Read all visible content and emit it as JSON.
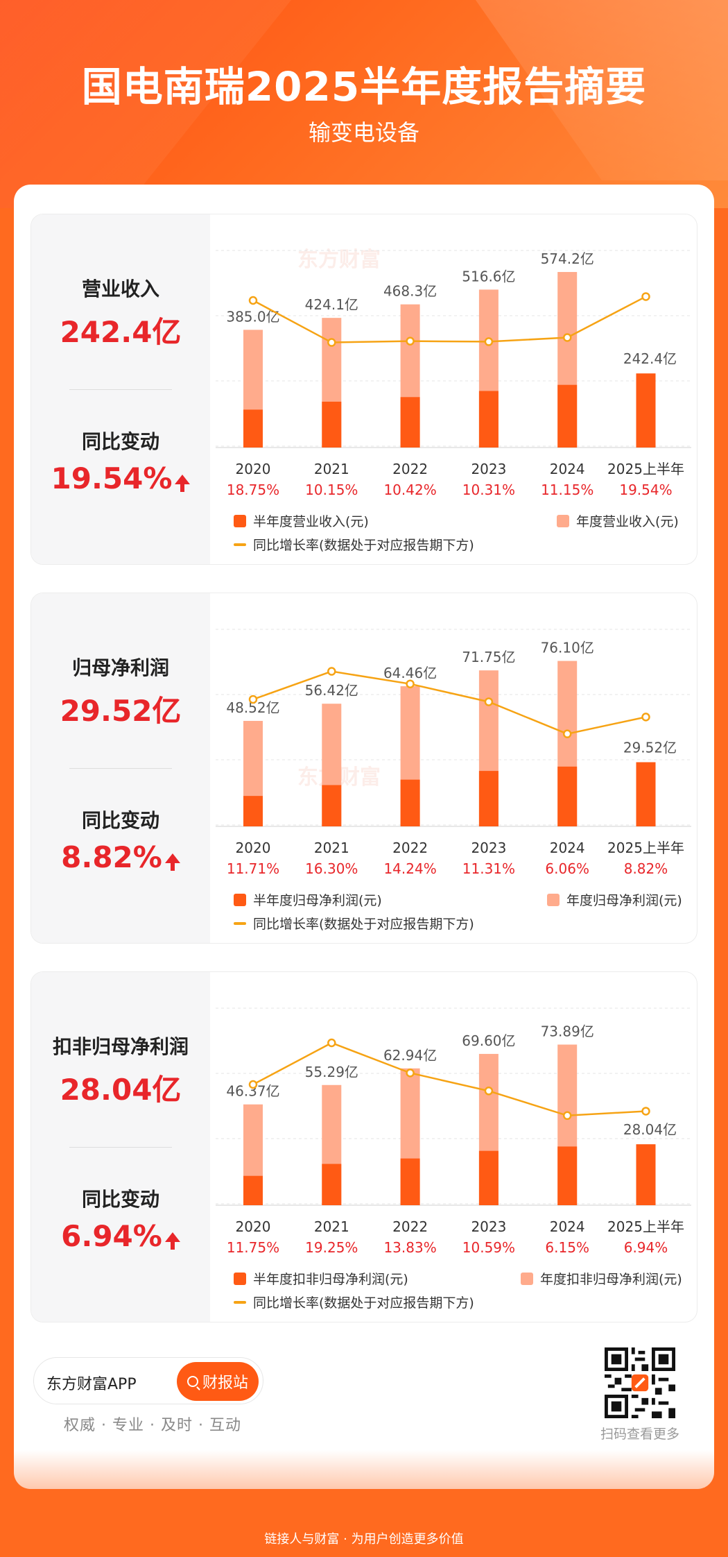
{
  "header": {
    "title": "国电南瑞2025半年度报告摘要",
    "subtitle": "输变电设备"
  },
  "watermark": "东方财富",
  "colors": {
    "half_bar": "#ff5a14",
    "annual_bar": "#ffab8c",
    "growth_line": "#f6a314",
    "negative_text": "#e8262a"
  },
  "sections": [
    {
      "metric_label": "营业收入",
      "metric_value": "242.4亿",
      "change_label": "同比变动",
      "change_value": "19.54%",
      "legend": {
        "half": "半年度营业收入(元)",
        "annual": "年度营业收入(元)",
        "line": "同比增长率(数据处于对应报告期下方)"
      }
    },
    {
      "metric_label": "归母净利润",
      "metric_value": "29.52亿",
      "change_label": "同比变动",
      "change_value": "8.82%",
      "legend": {
        "half": "半年度归母净利润(元)",
        "annual": "年度归母净利润(元)",
        "line": "同比增长率(数据处于对应报告期下方)"
      }
    },
    {
      "metric_label": "扣非归母净利润",
      "metric_value": "28.04亿",
      "change_label": "同比变动",
      "change_value": "6.94%",
      "legend": {
        "half": "半年度扣非归母净利润(元)",
        "annual": "年度扣非归母净利润(元)",
        "line": "同比增长率(数据处于对应报告期下方)"
      }
    }
  ],
  "chart_data": [
    {
      "type": "bar",
      "categories": [
        "2020",
        "2021",
        "2022",
        "2023",
        "2024",
        "2025上半年"
      ],
      "series": [
        {
          "name": "半年度营业收入(元)",
          "values": [
            124,
            150,
            165,
            185,
            205,
            242.4
          ]
        },
        {
          "name": "年度营业收入(元)",
          "values": [
            385.0,
            424.1,
            468.3,
            516.6,
            574.2,
            null
          ]
        },
        {
          "name": "同比增长率(数据处于对应报告期下方)",
          "values": [
            18.75,
            10.15,
            10.42,
            10.31,
            11.15,
            19.54
          ]
        }
      ],
      "bar_labels": [
        "385.0亿",
        "424.1亿",
        "468.3亿",
        "516.6亿",
        "574.2亿",
        "242.4亿"
      ],
      "growth_labels": [
        "18.75%",
        "10.15%",
        "10.42%",
        "10.31%",
        "11.15%",
        "19.54%"
      ],
      "ylim": [
        0,
        640
      ],
      "growth_range": [
        0,
        25
      ]
    },
    {
      "type": "bar",
      "categories": [
        "2020",
        "2021",
        "2022",
        "2023",
        "2024",
        "2025上半年"
      ],
      "series": [
        {
          "name": "半年度归母净利润(元)",
          "values": [
            14,
            19,
            21.5,
            25.5,
            27.5,
            29.52
          ]
        },
        {
          "name": "年度归母净利润(元)",
          "values": [
            48.52,
            56.42,
            64.46,
            71.75,
            76.1,
            null
          ]
        },
        {
          "name": "同比增长率(数据处于对应报告期下方)",
          "values": [
            11.71,
            16.3,
            14.24,
            11.31,
            6.06,
            8.82
          ]
        }
      ],
      "bar_labels": [
        "48.52亿",
        "56.42亿",
        "64.46亿",
        "71.75亿",
        "76.10亿",
        "29.52亿"
      ],
      "growth_labels": [
        "11.71%",
        "16.30%",
        "14.24%",
        "11.31%",
        "6.06%",
        "8.82%"
      ],
      "ylim": [
        0,
        90
      ],
      "growth_range": [
        0,
        20
      ]
    },
    {
      "type": "bar",
      "categories": [
        "2020",
        "2021",
        "2022",
        "2023",
        "2024",
        "2025上半年"
      ],
      "series": [
        {
          "name": "半年度扣非归母净利润(元)",
          "values": [
            13.5,
            19,
            21.5,
            25,
            27,
            28.04
          ]
        },
        {
          "name": "年度扣非归母净利润(元)",
          "values": [
            46.37,
            55.29,
            62.94,
            69.6,
            73.89,
            null
          ]
        },
        {
          "name": "同比增长率(数据处于对应报告期下方)",
          "values": [
            11.75,
            19.25,
            13.83,
            10.59,
            6.15,
            6.94
          ]
        }
      ],
      "bar_labels": [
        "46.37亿",
        "55.29亿",
        "62.94亿",
        "69.60亿",
        "73.89亿",
        "28.04亿"
      ],
      "growth_labels": [
        "11.75%",
        "19.25%",
        "13.83%",
        "10.59%",
        "6.15%",
        "6.94%"
      ],
      "ylim": [
        0,
        90
      ],
      "growth_range": [
        0,
        22
      ]
    }
  ],
  "footer": {
    "app_name": "东方财富APP",
    "button_label": "财报站",
    "slogan": "权威 · 专业 · 及时 · 互动",
    "qr_caption": "扫码查看更多",
    "bottom_text": "链接人与财富 · 为用户创造更多价值"
  }
}
